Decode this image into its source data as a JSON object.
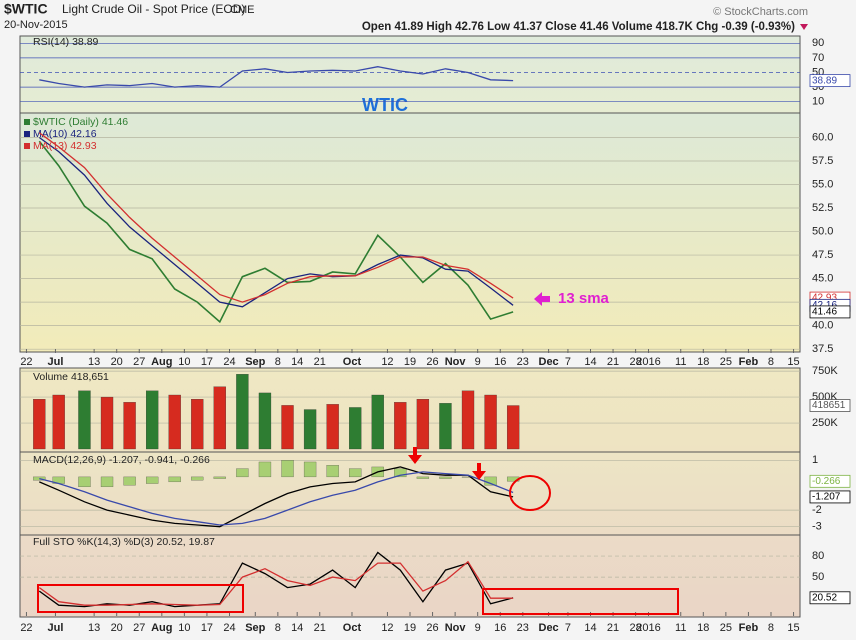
{
  "header": {
    "symbol": "$WTIC",
    "name": "Light Crude Oil - Spot Price (EOD)",
    "exchange": "CME",
    "date": "20-Nov-2015",
    "quote": "Open 41.89  High 42.76  Low 41.37  Close 41.46  Volume 418.7K  Chg -0.39 (-0.93%)",
    "source": "© StockCharts.com"
  },
  "chart_data": [
    {
      "type": "line",
      "xlim": [
        "2015-06-20",
        "2016-02-17"
      ],
      "ylim": [
        37.2,
        62.6
      ],
      "yticks": [
        37.5,
        {
          "value": 40,
          "label": "40.0"
        },
        42.5,
        {
          "value": 45,
          "label": "45.0"
        },
        47.5,
        {
          "value": 50,
          "label": "50.0"
        },
        52.5,
        {
          "value": 55,
          "label": "55.0"
        },
        57.5,
        {
          "value": 60,
          "label": "60.0"
        }
      ],
      "xticks": [
        {
          "value": "2015-06-22",
          "label": "22"
        },
        {
          "value": "2015-07-01",
          "label": "Jul"
        },
        {
          "value": "2015-07-13",
          "label": "13"
        },
        {
          "value": "2015-07-20",
          "label": "20"
        },
        {
          "value": "2015-07-27",
          "label": "27"
        },
        {
          "value": "2015-08-03",
          "label": "Aug"
        },
        {
          "value": "2015-08-10",
          "label": "10"
        },
        {
          "value": "2015-08-17",
          "label": "17"
        },
        {
          "value": "2015-08-24",
          "label": "24"
        },
        {
          "value": "2015-09-01",
          "label": "Sep"
        },
        {
          "value": "2015-09-08",
          "label": "8"
        },
        {
          "value": "2015-09-14",
          "label": "14"
        },
        {
          "value": "2015-09-21",
          "label": "21"
        },
        {
          "value": "2015-10-01",
          "label": "Oct"
        },
        {
          "value": "2015-10-12",
          "label": "12"
        },
        {
          "value": "2015-10-19",
          "label": "19"
        },
        {
          "value": "2015-10-26",
          "label": "26"
        },
        {
          "value": "2015-11-02",
          "label": "Nov"
        },
        {
          "value": "2015-11-09",
          "label": "9"
        },
        {
          "value": "2015-11-16",
          "label": "16"
        },
        {
          "value": "2015-11-23",
          "label": "23"
        },
        {
          "value": "2015-12-01",
          "label": "Dec"
        },
        {
          "value": "2015-12-07",
          "label": "7"
        },
        {
          "value": "2015-12-14",
          "label": "14"
        },
        {
          "value": "2015-12-21",
          "label": "21"
        },
        {
          "value": "2015-12-28",
          "label": "28"
        },
        {
          "value": "2016-01-01",
          "label": "2016"
        },
        {
          "value": "2016-01-11",
          "label": "11"
        },
        {
          "value": "2016-01-18",
          "label": "18"
        },
        {
          "value": "2016-01-25",
          "label": "25"
        },
        {
          "value": "2016-02-01",
          "label": "Feb"
        },
        {
          "value": "2016-02-08",
          "label": "8"
        },
        {
          "value": "2016-02-15",
          "label": "15"
        }
      ],
      "x": [
        "2015-06-26",
        "2015-07-02",
        "2015-07-10",
        "2015-07-17",
        "2015-07-24",
        "2015-07-31",
        "2015-08-07",
        "2015-08-14",
        "2015-08-21",
        "2015-08-28",
        "2015-09-04",
        "2015-09-11",
        "2015-09-18",
        "2015-09-25",
        "2015-10-02",
        "2015-10-09",
        "2015-10-16",
        "2015-10-23",
        "2015-10-30",
        "2015-11-06",
        "2015-11-13",
        "2015-11-20"
      ],
      "series": [
        {
          "name": "$WTIC (Daily) 41.46",
          "color": "#2e7d32",
          "values": [
            59.6,
            57.0,
            52.7,
            50.9,
            48.1,
            47.1,
            43.9,
            42.5,
            40.4,
            45.2,
            46.1,
            44.6,
            44.7,
            45.7,
            45.5,
            49.6,
            47.3,
            44.6,
            46.6,
            44.3,
            40.7,
            41.46
          ]
        },
        {
          "name": "MA(10) 42.16",
          "color": "#1a237e",
          "values": [
            60.0,
            58.5,
            56.0,
            53.0,
            50.5,
            48.5,
            46.5,
            44.5,
            42.5,
            42.0,
            43.5,
            45.0,
            45.5,
            45.2,
            45.3,
            46.5,
            47.5,
            47.2,
            46.0,
            45.8,
            44.0,
            42.16
          ]
        },
        {
          "name": "MA(13) 42.93",
          "color": "#d32f2f",
          "values": [
            60.5,
            59.0,
            56.8,
            54.0,
            51.5,
            49.3,
            47.3,
            45.3,
            43.3,
            42.5,
            43.3,
            44.5,
            45.2,
            45.3,
            45.3,
            46.2,
            47.3,
            47.3,
            46.4,
            46.0,
            44.5,
            42.93
          ]
        }
      ],
      "tags": [
        42.93,
        42.16,
        41.46
      ],
      "tag_colors": [
        "#d32f2f",
        "#1a237e",
        "#000000"
      ],
      "annotations": [
        "WTIC",
        "13 sma"
      ]
    },
    {
      "type": "line",
      "legend": "RSI(14) 38.89",
      "xlim": [
        "2015-06-20",
        "2016-02-17"
      ],
      "ylim": [
        0,
        100
      ],
      "yticks": [
        90,
        70,
        50,
        30,
        10
      ],
      "x": [
        "2015-06-26",
        "2015-07-02",
        "2015-07-10",
        "2015-07-17",
        "2015-07-24",
        "2015-07-31",
        "2015-08-07",
        "2015-08-14",
        "2015-08-21",
        "2015-08-28",
        "2015-09-04",
        "2015-09-11",
        "2015-09-18",
        "2015-09-25",
        "2015-10-02",
        "2015-10-09",
        "2015-10-16",
        "2015-10-23",
        "2015-10-30",
        "2015-11-06",
        "2015-11-13",
        "2015-11-20"
      ],
      "series": [
        {
          "color": "#3949ab",
          "values": [
            40,
            35,
            30,
            33,
            32,
            35,
            30,
            32,
            30,
            52,
            55,
            50,
            52,
            53,
            52,
            58,
            52,
            48,
            55,
            50,
            40,
            38.89
          ]
        }
      ],
      "tags": [
        38.89
      ],
      "tag_colors": [
        "#3949ab"
      ]
    },
    {
      "type": "bar",
      "legend": "Volume 418,651",
      "xlim": [
        "2015-06-20",
        "2016-02-17"
      ],
      "ylim": [
        0,
        780000
      ],
      "yticks": [
        {
          "value": 250000,
          "label": "250K"
        },
        {
          "value": 500000,
          "label": "500K"
        },
        {
          "value": 750000,
          "label": "750K"
        }
      ],
      "x": [
        "2015-06-26",
        "2015-07-02",
        "2015-07-10",
        "2015-07-17",
        "2015-07-24",
        "2015-07-31",
        "2015-08-07",
        "2015-08-14",
        "2015-08-21",
        "2015-08-28",
        "2015-09-04",
        "2015-09-11",
        "2015-09-18",
        "2015-09-25",
        "2015-10-02",
        "2015-10-09",
        "2015-10-16",
        "2015-10-23",
        "2015-10-30",
        "2015-11-06",
        "2015-11-13",
        "2015-11-20"
      ],
      "series": [
        {
          "colors": [
            "#d62b1f",
            "#d62b1f",
            "#2e7d32",
            "#d62b1f",
            "#d62b1f",
            "#2e7d32",
            "#d62b1f",
            "#d62b1f",
            "#d62b1f",
            "#2e7d32",
            "#2e7d32",
            "#d62b1f",
            "#2e7d32",
            "#d62b1f",
            "#2e7d32",
            "#2e7d32",
            "#d62b1f",
            "#d62b1f",
            "#2e7d32",
            "#d62b1f",
            "#d62b1f",
            "#d62b1f"
          ],
          "values": [
            480000,
            520000,
            560000,
            500000,
            450000,
            560000,
            520000,
            480000,
            600000,
            720000,
            540000,
            420000,
            380000,
            430000,
            400000,
            520000,
            450000,
            480000,
            440000,
            560000,
            520000,
            418651
          ]
        }
      ],
      "tags": [
        418651
      ],
      "tag_colors": [
        "#555555"
      ]
    },
    {
      "type": "line",
      "legend": "MACD(12,26,9) -1.207, -0.941, -0.266",
      "xlim": [
        "2015-06-20",
        "2016-02-17"
      ],
      "ylim": [
        -3.5,
        1.5
      ],
      "yticks": [
        1,
        -2,
        -3
      ],
      "x": [
        "2015-06-26",
        "2015-07-02",
        "2015-07-10",
        "2015-07-17",
        "2015-07-24",
        "2015-07-31",
        "2015-08-07",
        "2015-08-14",
        "2015-08-21",
        "2015-08-28",
        "2015-09-04",
        "2015-09-11",
        "2015-09-18",
        "2015-09-25",
        "2015-10-02",
        "2015-10-09",
        "2015-10-16",
        "2015-10-23",
        "2015-10-30",
        "2015-11-06",
        "2015-11-13",
        "2015-11-20"
      ],
      "series": [
        {
          "type": "bar",
          "color": "#9ccc65",
          "values": [
            -0.2,
            -0.4,
            -0.6,
            -0.6,
            -0.5,
            -0.4,
            -0.3,
            -0.2,
            -0.1,
            0.5,
            0.9,
            1.0,
            0.9,
            0.7,
            0.5,
            0.6,
            0.5,
            -0.1,
            -0.1,
            0.0,
            -0.5,
            -0.266
          ]
        },
        {
          "color": "#000000",
          "values": [
            -0.3,
            -0.8,
            -1.5,
            -2.0,
            -2.3,
            -2.6,
            -2.8,
            -2.9,
            -3.0,
            -2.3,
            -1.6,
            -1.0,
            -0.6,
            -0.4,
            -0.3,
            0.3,
            0.6,
            0.2,
            0.1,
            0.1,
            -0.9,
            -1.207
          ]
        },
        {
          "color": "#3949ab",
          "values": [
            -0.1,
            -0.4,
            -0.9,
            -1.4,
            -1.8,
            -2.2,
            -2.5,
            -2.7,
            -2.9,
            -2.8,
            -2.5,
            -2.0,
            -1.5,
            -1.1,
            -0.8,
            -0.3,
            0.1,
            0.3,
            0.2,
            0.1,
            -0.4,
            -0.941
          ]
        }
      ],
      "tags": [
        -0.266,
        -1.207
      ],
      "tag_colors": [
        "#7cb342",
        "#000000"
      ]
    },
    {
      "type": "line",
      "legend": "Full STO %K(14,3) %D(3) 20.52, 19.87",
      "xlim": [
        "2015-06-20",
        "2016-02-17"
      ],
      "ylim": [
        -4,
        110
      ],
      "yticks": [
        80,
        50
      ],
      "xticks": [
        {
          "value": "2015-06-22",
          "label": "22"
        },
        {
          "value": "2015-07-01",
          "label": "Jul"
        },
        {
          "value": "2015-07-13",
          "label": "13"
        },
        {
          "value": "2015-07-20",
          "label": "20"
        },
        {
          "value": "2015-07-27",
          "label": "27"
        },
        {
          "value": "2015-08-03",
          "label": "Aug"
        },
        {
          "value": "2015-08-10",
          "label": "10"
        },
        {
          "value": "2015-08-17",
          "label": "17"
        },
        {
          "value": "2015-08-24",
          "label": "24"
        },
        {
          "value": "2015-09-01",
          "label": "Sep"
        },
        {
          "value": "2015-09-08",
          "label": "8"
        },
        {
          "value": "2015-09-14",
          "label": "14"
        },
        {
          "value": "2015-09-21",
          "label": "21"
        },
        {
          "value": "2015-10-01",
          "label": "Oct"
        },
        {
          "value": "2015-10-12",
          "label": "12"
        },
        {
          "value": "2015-10-19",
          "label": "19"
        },
        {
          "value": "2015-10-26",
          "label": "26"
        },
        {
          "value": "2015-11-02",
          "label": "Nov"
        },
        {
          "value": "2015-11-09",
          "label": "9"
        },
        {
          "value": "2015-11-16",
          "label": "16"
        },
        {
          "value": "2015-11-23",
          "label": "23"
        },
        {
          "value": "2015-12-01",
          "label": "Dec"
        },
        {
          "value": "2015-12-07",
          "label": "7"
        },
        {
          "value": "2015-12-14",
          "label": "14"
        },
        {
          "value": "2015-12-21",
          "label": "21"
        },
        {
          "value": "2015-12-28",
          "label": "28"
        },
        {
          "value": "2016-01-01",
          "label": "2016"
        },
        {
          "value": "2016-01-11",
          "label": "11"
        },
        {
          "value": "2016-01-18",
          "label": "18"
        },
        {
          "value": "2016-01-25",
          "label": "25"
        },
        {
          "value": "2016-02-01",
          "label": "Feb"
        },
        {
          "value": "2016-02-08",
          "label": "8"
        },
        {
          "value": "2016-02-15",
          "label": "15"
        }
      ],
      "x": [
        "2015-06-26",
        "2015-07-02",
        "2015-07-10",
        "2015-07-17",
        "2015-07-24",
        "2015-07-31",
        "2015-08-07",
        "2015-08-14",
        "2015-08-21",
        "2015-08-28",
        "2015-09-04",
        "2015-09-11",
        "2015-09-18",
        "2015-09-25",
        "2015-10-02",
        "2015-10-09",
        "2015-10-16",
        "2015-10-23",
        "2015-10-30",
        "2015-11-06",
        "2015-11-13",
        "2015-11-20"
      ],
      "series": [
        {
          "color": "#000000",
          "values": [
            30,
            10,
            8,
            12,
            10,
            15,
            8,
            10,
            12,
            70,
            55,
            35,
            40,
            60,
            35,
            85,
            60,
            15,
            60,
            70,
            12,
            20.52
          ]
        },
        {
          "color": "#d32f2f",
          "values": [
            35,
            15,
            10,
            10,
            11,
            12,
            11,
            10,
            11,
            50,
            62,
            45,
            38,
            50,
            45,
            70,
            70,
            30,
            45,
            72,
            20,
            19.87
          ]
        }
      ],
      "tags": [
        20.52
      ],
      "tag_colors": [
        "#000000"
      ]
    }
  ]
}
